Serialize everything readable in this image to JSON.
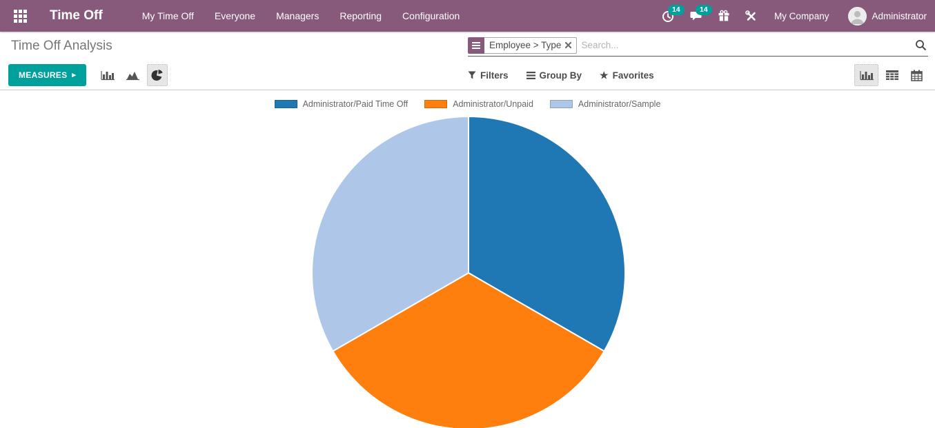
{
  "nav": {
    "brand": "Time Off",
    "menu_items": [
      "My Time Off",
      "Everyone",
      "Managers",
      "Reporting",
      "Configuration"
    ],
    "systray": {
      "activity_count": "14",
      "message_count": "14",
      "company": "My Company",
      "user": "Administrator"
    }
  },
  "breadcrumb": {
    "title": "Time Off Analysis"
  },
  "search": {
    "facet_label": "Employee > Type",
    "placeholder": "Search..."
  },
  "toolbar": {
    "measures_label": "MEASURES",
    "filters_label": "Filters",
    "group_by_label": "Group By",
    "favorites_label": "Favorites"
  },
  "icons": {
    "caret_right": "▸",
    "star": "★"
  },
  "colors": {
    "navbar": "#875a7b",
    "accent_teal": "#00a09d",
    "badge": "#00a09d",
    "icon_gray": "#555555"
  },
  "chart_data": {
    "type": "pie",
    "title": "",
    "labels": [
      "Administrator/Paid Time Off",
      "Administrator/Unpaid",
      "Administrator/Sample"
    ],
    "values": [
      33.33,
      33.33,
      33.33
    ],
    "values_note": "three equal slices; no numeric labels shown on chart (percent share estimated)",
    "colors": [
      "#1f77b4",
      "#ff7f0e",
      "#aec7e8"
    ],
    "legend_position": "top",
    "start_angle_deg": 0,
    "direction": "clockwise"
  }
}
